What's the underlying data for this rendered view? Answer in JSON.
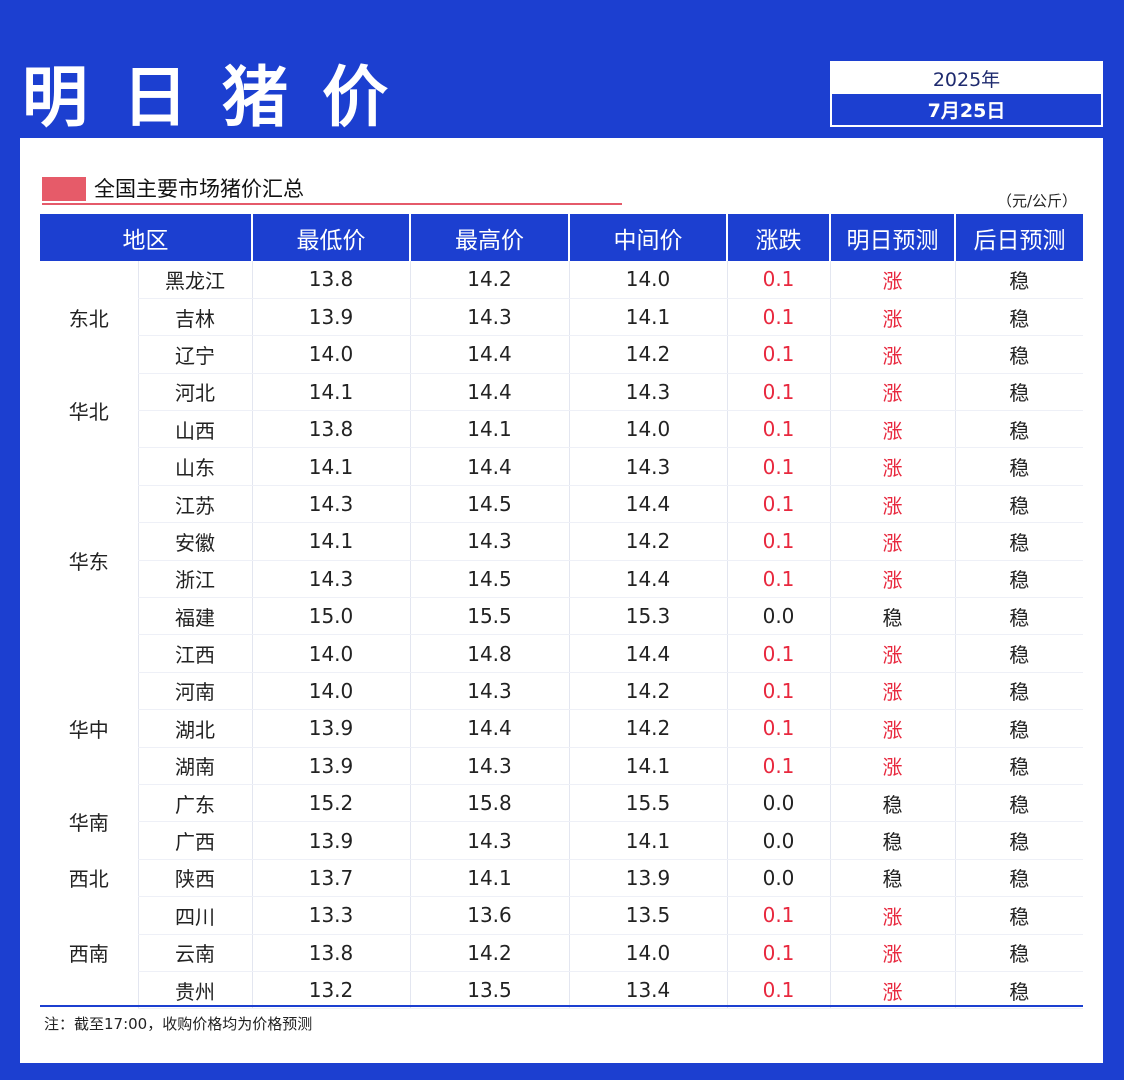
{
  "header": {
    "title": "明日猪价",
    "year": "2025年",
    "date": "7月25日"
  },
  "section": {
    "title": "全国主要市场猪价汇总",
    "unit": "（元/公斤）"
  },
  "columns": [
    "地区",
    "最低价",
    "最高价",
    "中间价",
    "涨跌",
    "明日预测",
    "后日预测"
  ],
  "regions": [
    {
      "name": "东北",
      "span": 3
    },
    {
      "name": "华北",
      "span": 2
    },
    {
      "name": "华东",
      "span": 6
    },
    {
      "name": "华中",
      "span": 3
    },
    {
      "name": "华南",
      "span": 2
    },
    {
      "name": "西北",
      "span": 1
    },
    {
      "name": "西南",
      "span": 3
    }
  ],
  "rows": [
    {
      "province": "黑龙江",
      "low": "13.8",
      "high": "14.2",
      "mid": "14.0",
      "change": "0.1",
      "tomorrow": "涨",
      "after": "稳"
    },
    {
      "province": "吉林",
      "low": "13.9",
      "high": "14.3",
      "mid": "14.1",
      "change": "0.1",
      "tomorrow": "涨",
      "after": "稳"
    },
    {
      "province": "辽宁",
      "low": "14.0",
      "high": "14.4",
      "mid": "14.2",
      "change": "0.1",
      "tomorrow": "涨",
      "after": "稳"
    },
    {
      "province": "河北",
      "low": "14.1",
      "high": "14.4",
      "mid": "14.3",
      "change": "0.1",
      "tomorrow": "涨",
      "after": "稳"
    },
    {
      "province": "山西",
      "low": "13.8",
      "high": "14.1",
      "mid": "14.0",
      "change": "0.1",
      "tomorrow": "涨",
      "after": "稳"
    },
    {
      "province": "山东",
      "low": "14.1",
      "high": "14.4",
      "mid": "14.3",
      "change": "0.1",
      "tomorrow": "涨",
      "after": "稳"
    },
    {
      "province": "江苏",
      "low": "14.3",
      "high": "14.5",
      "mid": "14.4",
      "change": "0.1",
      "tomorrow": "涨",
      "after": "稳"
    },
    {
      "province": "安徽",
      "low": "14.1",
      "high": "14.3",
      "mid": "14.2",
      "change": "0.1",
      "tomorrow": "涨",
      "after": "稳"
    },
    {
      "province": "浙江",
      "low": "14.3",
      "high": "14.5",
      "mid": "14.4",
      "change": "0.1",
      "tomorrow": "涨",
      "after": "稳"
    },
    {
      "province": "福建",
      "low": "15.0",
      "high": "15.5",
      "mid": "15.3",
      "change": "0.0",
      "tomorrow": "稳",
      "after": "稳"
    },
    {
      "province": "江西",
      "low": "14.0",
      "high": "14.8",
      "mid": "14.4",
      "change": "0.1",
      "tomorrow": "涨",
      "after": "稳"
    },
    {
      "province": "河南",
      "low": "14.0",
      "high": "14.3",
      "mid": "14.2",
      "change": "0.1",
      "tomorrow": "涨",
      "after": "稳"
    },
    {
      "province": "湖北",
      "low": "13.9",
      "high": "14.4",
      "mid": "14.2",
      "change": "0.1",
      "tomorrow": "涨",
      "after": "稳"
    },
    {
      "province": "湖南",
      "low": "13.9",
      "high": "14.3",
      "mid": "14.1",
      "change": "0.1",
      "tomorrow": "涨",
      "after": "稳"
    },
    {
      "province": "广东",
      "low": "15.2",
      "high": "15.8",
      "mid": "15.5",
      "change": "0.0",
      "tomorrow": "稳",
      "after": "稳"
    },
    {
      "province": "广西",
      "low": "13.9",
      "high": "14.3",
      "mid": "14.1",
      "change": "0.0",
      "tomorrow": "稳",
      "after": "稳"
    },
    {
      "province": "陕西",
      "low": "13.7",
      "high": "14.1",
      "mid": "13.9",
      "change": "0.0",
      "tomorrow": "稳",
      "after": "稳"
    },
    {
      "province": "四川",
      "low": "13.3",
      "high": "13.6",
      "mid": "13.5",
      "change": "0.1",
      "tomorrow": "涨",
      "after": "稳"
    },
    {
      "province": "云南",
      "low": "13.8",
      "high": "14.2",
      "mid": "14.0",
      "change": "0.1",
      "tomorrow": "涨",
      "after": "稳"
    },
    {
      "province": "贵州",
      "low": "13.2",
      "high": "13.5",
      "mid": "13.4",
      "change": "0.1",
      "tomorrow": "涨",
      "after": "稳"
    }
  ],
  "note": "注：截至17:00，收购价格均为价格预测",
  "colors": {
    "primary": "#1c3fd0",
    "rise": "#e8283e",
    "marker": "#e65b69"
  }
}
